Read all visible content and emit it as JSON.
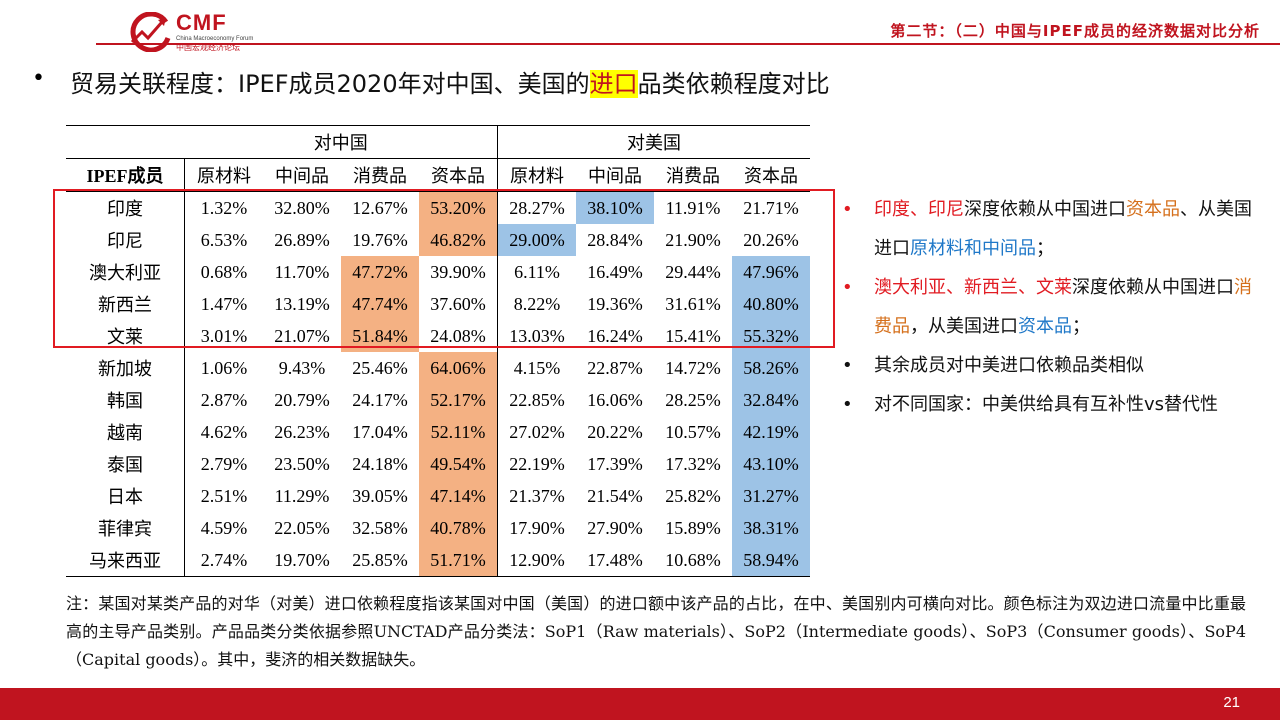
{
  "header": {
    "logo_text": "CMF",
    "logo_sub": "China Macroeconomy Forum",
    "logo_cn": "中国宏观经济论坛",
    "section_title": "第二节：（二）中国与IPEF成员的经济数据对比分析"
  },
  "title": {
    "bullet": "•",
    "pre": "贸易关联程度：IPEF成员2020年对中国、美国的",
    "highlight": "进口",
    "post": "品类依赖程度对比"
  },
  "table": {
    "group_china": "对中国",
    "group_us": "对美国",
    "header_member": "IPEF成员",
    "categories": [
      "原材料",
      "中间品",
      "消费品",
      "资本品"
    ],
    "rows": [
      {
        "name": "印度",
        "values": [
          "1.32%",
          "32.80%",
          "12.67%",
          "53.20%",
          "28.27%",
          "38.10%",
          "11.91%",
          "21.71%"
        ],
        "hl": [
          "",
          "",
          "",
          "o",
          "",
          "b",
          "",
          ""
        ]
      },
      {
        "name": "印尼",
        "values": [
          "6.53%",
          "26.89%",
          "19.76%",
          "46.82%",
          "29.00%",
          "28.84%",
          "21.90%",
          "20.26%"
        ],
        "hl": [
          "",
          "",
          "",
          "o",
          "b",
          "",
          "",
          ""
        ]
      },
      {
        "name": "澳大利亚",
        "values": [
          "0.68%",
          "11.70%",
          "47.72%",
          "39.90%",
          "6.11%",
          "16.49%",
          "29.44%",
          "47.96%"
        ],
        "hl": [
          "",
          "",
          "o",
          "",
          "",
          "",
          "",
          "b"
        ]
      },
      {
        "name": "新西兰",
        "values": [
          "1.47%",
          "13.19%",
          "47.74%",
          "37.60%",
          "8.22%",
          "19.36%",
          "31.61%",
          "40.80%"
        ],
        "hl": [
          "",
          "",
          "o",
          "",
          "",
          "",
          "",
          "b"
        ]
      },
      {
        "name": "文莱",
        "values": [
          "3.01%",
          "21.07%",
          "51.84%",
          "24.08%",
          "13.03%",
          "16.24%",
          "15.41%",
          "55.32%"
        ],
        "hl": [
          "",
          "",
          "o",
          "",
          "",
          "",
          "",
          "b"
        ]
      },
      {
        "name": "新加坡",
        "values": [
          "1.06%",
          "9.43%",
          "25.46%",
          "64.06%",
          "4.15%",
          "22.87%",
          "14.72%",
          "58.26%"
        ],
        "hl": [
          "",
          "",
          "",
          "o",
          "",
          "",
          "",
          "b"
        ]
      },
      {
        "name": "韩国",
        "values": [
          "2.87%",
          "20.79%",
          "24.17%",
          "52.17%",
          "22.85%",
          "16.06%",
          "28.25%",
          "32.84%"
        ],
        "hl": [
          "",
          "",
          "",
          "o",
          "",
          "",
          "",
          "b"
        ]
      },
      {
        "name": "越南",
        "values": [
          "4.62%",
          "26.23%",
          "17.04%",
          "52.11%",
          "27.02%",
          "20.22%",
          "10.57%",
          "42.19%"
        ],
        "hl": [
          "",
          "",
          "",
          "o",
          "",
          "",
          "",
          "b"
        ]
      },
      {
        "name": "泰国",
        "values": [
          "2.79%",
          "23.50%",
          "24.18%",
          "49.54%",
          "22.19%",
          "17.39%",
          "17.32%",
          "43.10%"
        ],
        "hl": [
          "",
          "",
          "",
          "o",
          "",
          "",
          "",
          "b"
        ]
      },
      {
        "name": "日本",
        "values": [
          "2.51%",
          "11.29%",
          "39.05%",
          "47.14%",
          "21.37%",
          "21.54%",
          "25.82%",
          "31.27%"
        ],
        "hl": [
          "",
          "",
          "",
          "o",
          "",
          "",
          "",
          "b"
        ]
      },
      {
        "name": "菲律宾",
        "values": [
          "4.59%",
          "22.05%",
          "32.58%",
          "40.78%",
          "17.90%",
          "27.90%",
          "15.89%",
          "38.31%"
        ],
        "hl": [
          "",
          "",
          "",
          "o",
          "",
          "",
          "",
          "b"
        ]
      },
      {
        "name": "马来西亚",
        "values": [
          "2.74%",
          "19.70%",
          "25.85%",
          "51.71%",
          "12.90%",
          "17.48%",
          "10.68%",
          "58.94%"
        ],
        "hl": [
          "",
          "",
          "",
          "o",
          "",
          "",
          "",
          "b"
        ]
      }
    ]
  },
  "bullets": {
    "b1": {
      "p1": "印度、印尼",
      "p2": "深度依赖从中国进口",
      "p3": "资本品",
      "p4": "、从美国进口",
      "p5": "原材料和中间品",
      "p6": "；"
    },
    "b2": {
      "p1": "澳大利亚、新西兰、文莱",
      "p2": "深度依赖从中国进口",
      "p3": "消费品",
      "p4": "，从美国进口",
      "p5": "资本品",
      "p6": "；"
    },
    "b3": "其余成员对中美进口依赖品类相似",
    "b4": "对不同国家：中美供给具有互补性vs替代性"
  },
  "footnote": "注：某国对某类产品的对华（对美）进口依赖程度指该某国对中国（美国）的进口额中该产品的占比，在中、美国别内可横向对比。颜色标注为双边进口流量中比重最高的主导产品类别。产品品类分类依据参照UNCTAD产品分类法：SoP1（Raw materials）、SoP2（Intermediate goods）、SoP3（Consumer goods）、SoP4（Capital goods）。其中，斐济的相关数据缺失。",
  "footer": {
    "page": "21"
  },
  "colors": {
    "brand_red": "#c0141f",
    "highlight_orange": "#f4b183",
    "highlight_blue": "#9dc3e6",
    "box_red": "#e11b22"
  }
}
